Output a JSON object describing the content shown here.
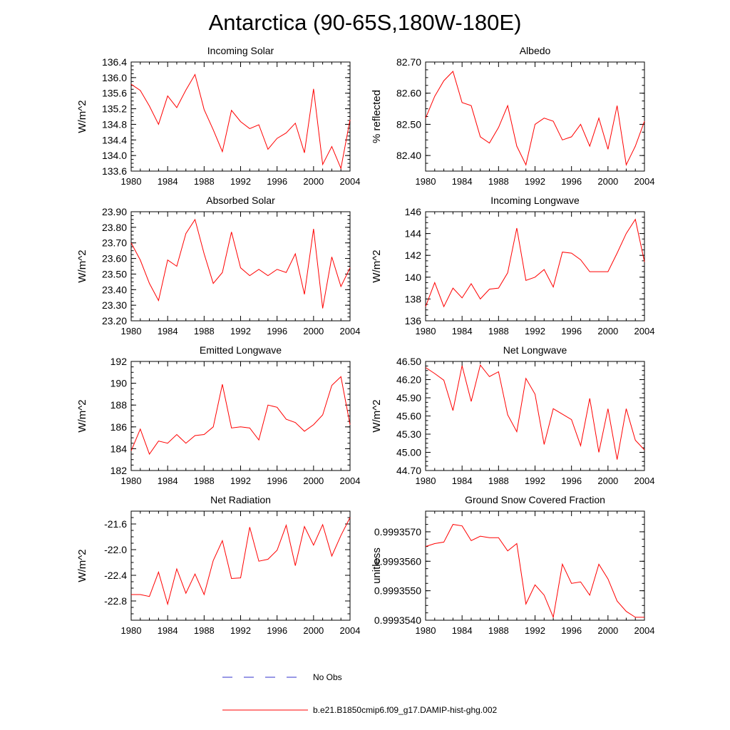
{
  "title": "Antarctica (90-65S,180W-180E)",
  "legend": {
    "entries": [
      {
        "label": "No Obs",
        "color": "#3333cc",
        "style": "dashed"
      },
      {
        "label": "b.e21.B1850cmip6.f09_g17.DAMIP-hist-ghg.002",
        "color": "#ff0000",
        "style": "solid"
      }
    ]
  },
  "chart_data": [
    {
      "type": "line",
      "title": "Incoming Solar",
      "ylabel": "W/m^2",
      "xlim": [
        1980,
        2004
      ],
      "ylim": [
        133.6,
        136.4
      ],
      "xticks": [
        "1980",
        "1984",
        "1988",
        "1992",
        "1996",
        "2000",
        "2004"
      ],
      "yticks": [
        "133.6",
        "134.0",
        "134.4",
        "134.8",
        "135.2",
        "135.6",
        "136.0",
        "136.4"
      ],
      "yticks_at": [
        133.6,
        134.0,
        134.4,
        134.8,
        135.2,
        135.6,
        136.0,
        136.4
      ],
      "x": [
        1980,
        1981,
        1982,
        1983,
        1984,
        1985,
        1986,
        1987,
        1988,
        1989,
        1990,
        1991,
        1992,
        1993,
        1994,
        1995,
        1996,
        1997,
        1998,
        1999,
        2000,
        2001,
        2002,
        2003,
        2004
      ],
      "series": [
        {
          "color": "#ff0000",
          "values": [
            135.83,
            135.67,
            135.27,
            134.8,
            135.53,
            135.23,
            135.68,
            136.08,
            135.18,
            134.66,
            134.1,
            135.16,
            134.87,
            134.69,
            134.79,
            134.16,
            134.44,
            134.58,
            134.83,
            134.07,
            135.71,
            133.77,
            134.23,
            133.67,
            134.92
          ]
        }
      ]
    },
    {
      "type": "line",
      "title": "Albedo",
      "ylabel": "% reflected",
      "xlim": [
        1980,
        2004
      ],
      "ylim": [
        82.35,
        82.7
      ],
      "xticks": [
        "1980",
        "1984",
        "1988",
        "1992",
        "1996",
        "2000",
        "2004"
      ],
      "yticks": [
        "82.40",
        "82.50",
        "82.60",
        "82.70"
      ],
      "yticks_at": [
        82.4,
        82.5,
        82.6,
        82.7
      ],
      "x": [
        1980,
        1981,
        1982,
        1983,
        1984,
        1985,
        1986,
        1987,
        1988,
        1989,
        1990,
        1991,
        1992,
        1993,
        1994,
        1995,
        1996,
        1997,
        1998,
        1999,
        2000,
        2001,
        2002,
        2003,
        2004
      ],
      "series": [
        {
          "color": "#ff0000",
          "values": [
            82.52,
            82.59,
            82.64,
            82.67,
            82.57,
            82.56,
            82.46,
            82.44,
            82.49,
            82.56,
            82.43,
            82.37,
            82.5,
            82.52,
            82.51,
            82.45,
            82.46,
            82.5,
            82.43,
            82.52,
            82.42,
            82.56,
            82.37,
            82.43,
            82.51
          ]
        }
      ]
    },
    {
      "type": "line",
      "title": "Absorbed Solar",
      "ylabel": "W/m^2",
      "xlim": [
        1980,
        2004
      ],
      "ylim": [
        23.2,
        23.9
      ],
      "xticks": [
        "1980",
        "1984",
        "1988",
        "1992",
        "1996",
        "2000",
        "2004"
      ],
      "yticks": [
        "23.20",
        "23.30",
        "23.40",
        "23.50",
        "23.60",
        "23.70",
        "23.80",
        "23.90"
      ],
      "yticks_at": [
        23.2,
        23.3,
        23.4,
        23.5,
        23.6,
        23.7,
        23.8,
        23.9
      ],
      "x": [
        1980,
        1981,
        1982,
        1983,
        1984,
        1985,
        1986,
        1987,
        1988,
        1989,
        1990,
        1991,
        1992,
        1993,
        1994,
        1995,
        1996,
        1997,
        1998,
        1999,
        2000,
        2001,
        2002,
        2003,
        2004
      ],
      "series": [
        {
          "color": "#ff0000",
          "values": [
            23.7,
            23.59,
            23.44,
            23.33,
            23.59,
            23.55,
            23.76,
            23.85,
            23.63,
            23.44,
            23.51,
            23.77,
            23.54,
            23.49,
            23.53,
            23.49,
            23.53,
            23.51,
            23.63,
            23.37,
            23.79,
            23.28,
            23.61,
            23.42,
            23.54
          ]
        }
      ]
    },
    {
      "type": "line",
      "title": "Incoming Longwave",
      "ylabel": "W/m^2",
      "xlim": [
        1980,
        2004
      ],
      "ylim": [
        136,
        146
      ],
      "xticks": [
        "1980",
        "1984",
        "1988",
        "1992",
        "1996",
        "2000",
        "2004"
      ],
      "yticks": [
        "136",
        "138",
        "140",
        "142",
        "144",
        "146"
      ],
      "yticks_at": [
        136,
        138,
        140,
        142,
        144,
        146
      ],
      "x": [
        1980,
        1981,
        1982,
        1983,
        1984,
        1985,
        1986,
        1987,
        1988,
        1989,
        1990,
        1991,
        1992,
        1993,
        1994,
        1995,
        1996,
        1997,
        1998,
        1999,
        2000,
        2001,
        2002,
        2003,
        2004
      ],
      "series": [
        {
          "color": "#ff0000",
          "values": [
            137.3,
            139.5,
            137.3,
            139.0,
            138.1,
            139.4,
            138.0,
            138.9,
            139.0,
            140.4,
            144.5,
            139.7,
            140.0,
            140.7,
            139.1,
            142.3,
            142.2,
            141.6,
            140.5,
            140.5,
            140.5,
            142.2,
            144.0,
            145.3,
            141.4
          ]
        }
      ]
    },
    {
      "type": "line",
      "title": "Emitted Longwave",
      "ylabel": "W/m^2",
      "xlim": [
        1980,
        2004
      ],
      "ylim": [
        182,
        192
      ],
      "xticks": [
        "1980",
        "1984",
        "1988",
        "1992",
        "1996",
        "2000",
        "2004"
      ],
      "yticks": [
        "182",
        "184",
        "186",
        "188",
        "190",
        "192"
      ],
      "yticks_at": [
        182,
        184,
        186,
        188,
        190,
        192
      ],
      "x": [
        1980,
        1981,
        1982,
        1983,
        1984,
        1985,
        1986,
        1987,
        1988,
        1989,
        1990,
        1991,
        1992,
        1993,
        1994,
        1995,
        1996,
        1997,
        1998,
        1999,
        2000,
        2001,
        2002,
        2003,
        2004
      ],
      "series": [
        {
          "color": "#ff0000",
          "values": [
            183.8,
            185.8,
            183.5,
            184.7,
            184.5,
            185.3,
            184.5,
            185.2,
            185.3,
            186.0,
            189.9,
            185.9,
            186.0,
            185.9,
            184.8,
            188.0,
            187.8,
            186.7,
            186.4,
            185.6,
            186.2,
            187.1,
            189.8,
            190.6,
            186.2
          ]
        }
      ]
    },
    {
      "type": "line",
      "title": "Net Longwave",
      "ylabel": "W/m^2",
      "xlim": [
        1980,
        2004
      ],
      "ylim": [
        44.7,
        46.5
      ],
      "xticks": [
        "1980",
        "1984",
        "1988",
        "1992",
        "1996",
        "2000",
        "2004"
      ],
      "yticks": [
        "44.70",
        "45.00",
        "45.30",
        "45.60",
        "45.90",
        "46.20",
        "46.50"
      ],
      "yticks_at": [
        44.7,
        45.0,
        45.3,
        45.6,
        45.9,
        46.2,
        46.5
      ],
      "x": [
        1980,
        1981,
        1982,
        1983,
        1984,
        1985,
        1986,
        1987,
        1988,
        1989,
        1990,
        1991,
        1992,
        1993,
        1994,
        1995,
        1996,
        1997,
        1998,
        1999,
        2000,
        2001,
        2002,
        2003,
        2004
      ],
      "series": [
        {
          "color": "#ff0000",
          "values": [
            46.4,
            46.3,
            46.19,
            45.69,
            46.43,
            45.84,
            46.44,
            46.25,
            46.33,
            45.62,
            45.34,
            46.22,
            45.96,
            45.13,
            45.72,
            45.63,
            45.54,
            45.11,
            45.89,
            45.0,
            45.72,
            44.88,
            45.72,
            45.2,
            45.04
          ]
        }
      ]
    },
    {
      "type": "line",
      "title": "Net Radiation",
      "ylabel": "W/m^2",
      "xlim": [
        1980,
        2004
      ],
      "ylim": [
        -23.1,
        -21.4
      ],
      "xticks": [
        "1980",
        "1984",
        "1988",
        "1992",
        "1996",
        "2000",
        "2004"
      ],
      "yticks": [
        "-22.8",
        "-22.4",
        "-22.0",
        "-21.6"
      ],
      "yticks_at": [
        -22.8,
        -22.4,
        -22.0,
        -21.6
      ],
      "x": [
        1980,
        1981,
        1982,
        1983,
        1984,
        1985,
        1986,
        1987,
        1988,
        1989,
        1990,
        1991,
        1992,
        1993,
        1994,
        1995,
        1996,
        1997,
        1998,
        1999,
        2000,
        2001,
        2002,
        2003,
        2004
      ],
      "series": [
        {
          "color": "#ff0000",
          "values": [
            -22.7,
            -22.7,
            -22.73,
            -22.35,
            -22.85,
            -22.3,
            -22.68,
            -22.38,
            -22.7,
            -22.17,
            -21.86,
            -22.45,
            -22.44,
            -21.65,
            -22.18,
            -22.15,
            -22.01,
            -21.62,
            -22.25,
            -21.64,
            -21.93,
            -21.61,
            -22.1,
            -21.78,
            -21.5
          ]
        }
      ]
    },
    {
      "type": "line",
      "title": "Ground Snow Covered Fraction",
      "ylabel": "unitless",
      "xlim": [
        1980,
        2004
      ],
      "ylim": [
        0.999354,
        0.9993577
      ],
      "xticks": [
        "1980",
        "1984",
        "1988",
        "1992",
        "1996",
        "2000",
        "2004"
      ],
      "yticks": [
        "0.9993540",
        "0.9993550",
        "0.9993560",
        "0.9993570"
      ],
      "yticks_at": [
        0.999354,
        0.999355,
        0.999356,
        0.999357
      ],
      "x": [
        1980,
        1981,
        1982,
        1983,
        1984,
        1985,
        1986,
        1987,
        1988,
        1989,
        1990,
        1991,
        1992,
        1993,
        1994,
        1995,
        1996,
        1997,
        1998,
        1999,
        2000,
        2001,
        2002,
        2003,
        2004
      ],
      "series": [
        {
          "color": "#ff0000",
          "values": [
            0.9993565,
            0.9993566,
            0.99935665,
            0.99935725,
            0.9993572,
            0.9993567,
            0.99935685,
            0.9993568,
            0.9993568,
            0.99935635,
            0.9993566,
            0.99935455,
            0.9993552,
            0.99935485,
            0.9993541,
            0.9993559,
            0.99935525,
            0.9993553,
            0.99935485,
            0.9993559,
            0.9993554,
            0.99935465,
            0.9993543,
            0.9993541,
            0.9993541
          ]
        }
      ]
    }
  ]
}
